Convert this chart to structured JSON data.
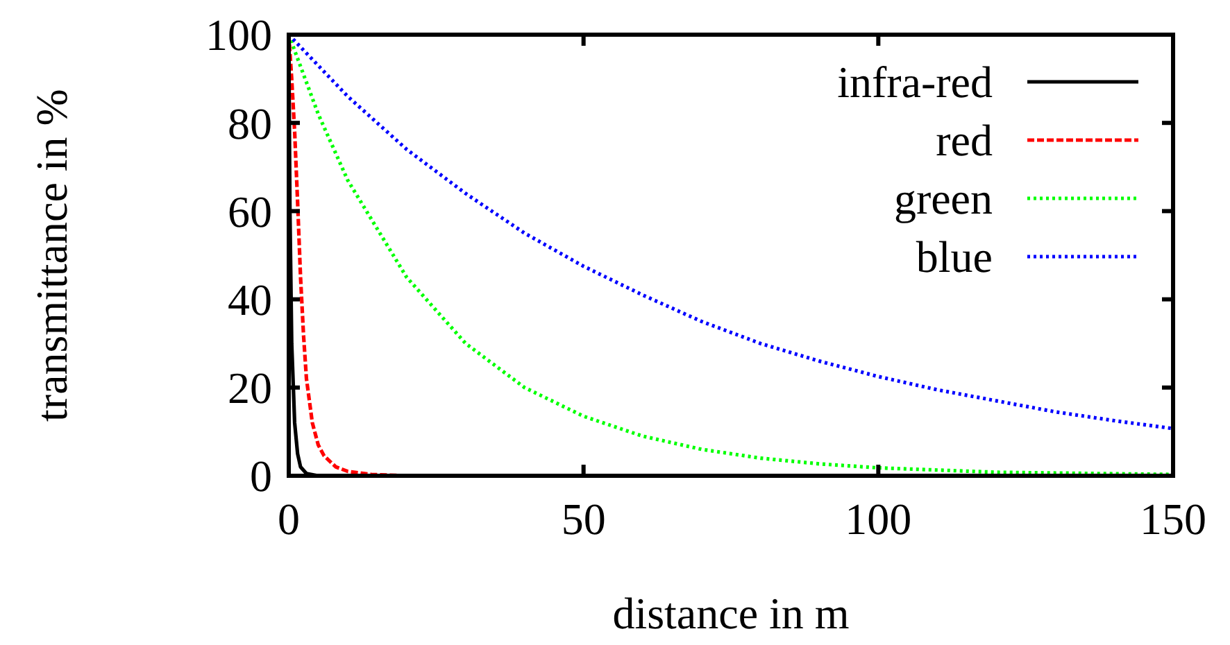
{
  "chart_data": {
    "type": "line",
    "xlabel": "distance in m",
    "ylabel": "transmittance in %",
    "xlim": [
      0,
      150
    ],
    "ylim": [
      0,
      100
    ],
    "xticks": [
      0,
      50,
      100,
      150
    ],
    "yticks": [
      0,
      20,
      40,
      60,
      80,
      100
    ],
    "grid": false,
    "legend": "top right",
    "marker": "none",
    "series": [
      {
        "name": "infra-red",
        "color": "#000000",
        "line_style": "solid",
        "x": [
          0,
          0.2,
          0.5,
          1,
          1.5,
          2,
          3,
          5
        ],
        "values": [
          100,
          60,
          30,
          12,
          5,
          2,
          0.5,
          0
        ]
      },
      {
        "name": "red",
        "color": "#ff0000",
        "line_style": "dashed",
        "x": [
          0,
          0.5,
          1,
          1.5,
          2,
          2.5,
          3,
          4,
          5,
          6,
          8,
          10,
          14,
          20
        ],
        "values": [
          100,
          90,
          78,
          62,
          45,
          32,
          22,
          12,
          7,
          4.5,
          2,
          1,
          0.3,
          0
        ]
      },
      {
        "name": "green",
        "color": "#00ff00",
        "line_style": "dotted",
        "x": [
          0,
          5,
          10,
          20,
          30,
          40,
          50,
          60,
          70,
          80,
          90,
          100,
          120,
          150
        ],
        "values": [
          100,
          82,
          67,
          45,
          30,
          20,
          13.5,
          9,
          6,
          4,
          2.7,
          1.8,
          0.8,
          0.3
        ]
      },
      {
        "name": "blue",
        "color": "#0000ff",
        "line_style": "dotted",
        "x": [
          0,
          10,
          20,
          30,
          40,
          50,
          60,
          70,
          80,
          90,
          100,
          110,
          120,
          130,
          140,
          150
        ],
        "values": [
          100,
          86,
          74,
          64,
          55,
          47.5,
          41,
          35,
          30,
          26,
          22.5,
          19.5,
          17,
          14.5,
          12.5,
          10.7
        ]
      }
    ]
  }
}
